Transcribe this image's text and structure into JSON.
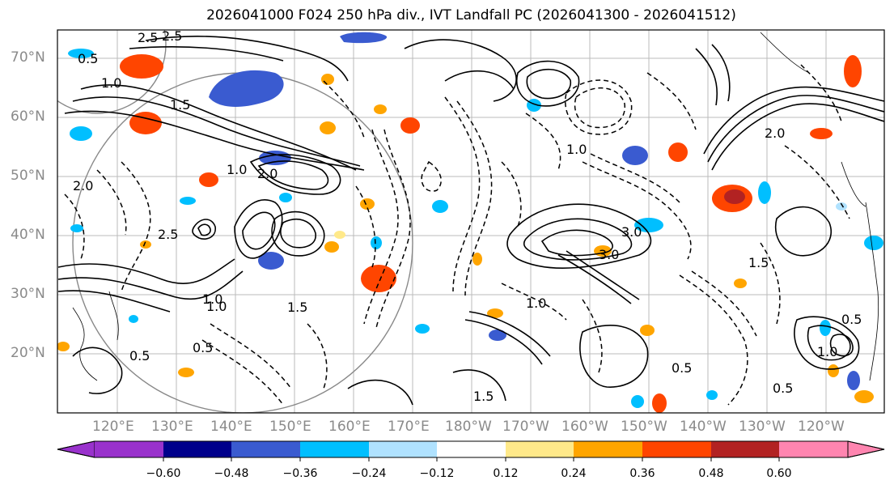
{
  "title": "2026041000 F024 250 hPa div., IVT Landfall PC (2026041300 - 2026041512)",
  "lat_labels": [
    "70°N",
    "60°N",
    "50°N",
    "40°N",
    "30°N",
    "20°N"
  ],
  "lon_labels": [
    "120°E",
    "130°E",
    "140°E",
    "150°E",
    "160°E",
    "170°E",
    "180°W",
    "170°W",
    "160°W",
    "150°W",
    "140°W",
    "130°W",
    "120°W"
  ],
  "contour_labels": [
    "0.5",
    "1.0",
    "1.5",
    "2.0",
    "2.5",
    "3.0",
    "2.5",
    "1.0",
    "0.5",
    "1.0",
    "1.5",
    "2.0",
    "3.0",
    "2.0",
    "1.0",
    "0.5",
    "1.5",
    "0.5",
    "1.0",
    "0.5",
    "2.5",
    "1.5",
    "0.5",
    "1.0",
    "1.0"
  ],
  "colorbar": {
    "ticks": [
      "−0.60",
      "−0.48",
      "−0.36",
      "−0.24",
      "−0.12",
      "0.12",
      "0.24",
      "0.36",
      "0.48",
      "0.60"
    ],
    "colors": [
      "#9932cc",
      "#00008b",
      "#3a5bd0",
      "#00bfff",
      "#b0e2ff",
      "#ffffff",
      "#ffe98a",
      "#ffa500",
      "#ff4500",
      "#b22222",
      "#ff85b0"
    ],
    "extend": "both"
  },
  "shading_colors": {
    "neg_strong": "#3a5bd0",
    "neg_mid": "#00bfff",
    "neg_weak": "#b0e2ff",
    "pos_weak": "#ffe98a",
    "pos_mid": "#ffa500",
    "pos_strong": "#ff4500",
    "pos_extreme": "#b22222"
  }
}
